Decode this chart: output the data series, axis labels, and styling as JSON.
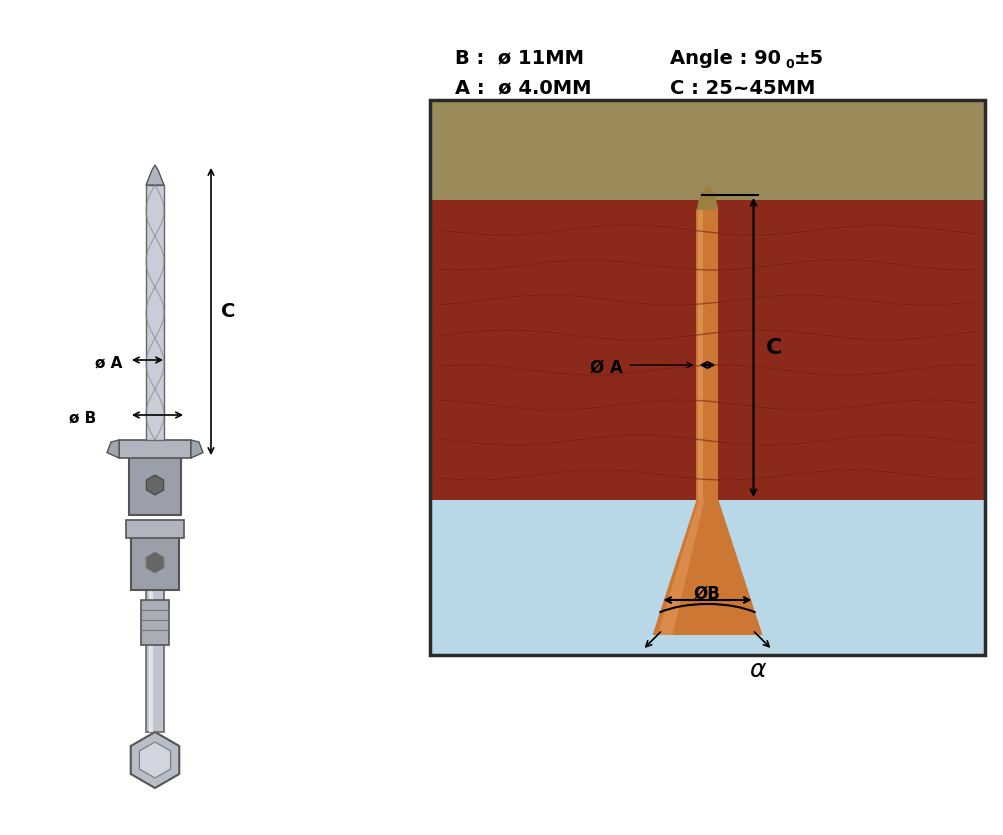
{
  "bg_color": "#ffffff",
  "diagram_box_color": "#2a2a2a",
  "sky_color": "#b8d8e8",
  "wood_color": "#8b2a1a",
  "ground_color": "#9b8b5a",
  "drill_body_color": "#cc7733",
  "drill_tip_color": "#9b8040",
  "label_a": "A :  ø 4.0MM",
  "label_b": "B :  ø 11MM",
  "label_c": "C : 25~45MM",
  "label_angle": "Angle : 90",
  "label_angle_sup": "0",
  "label_angle_pm": "±5",
  "text_dia_a": "Ø A",
  "text_dia_b": "ØB",
  "text_alpha": "α",
  "text_c": "C",
  "wood_grain_color": "#7a2010",
  "arrow_color": "#111111"
}
